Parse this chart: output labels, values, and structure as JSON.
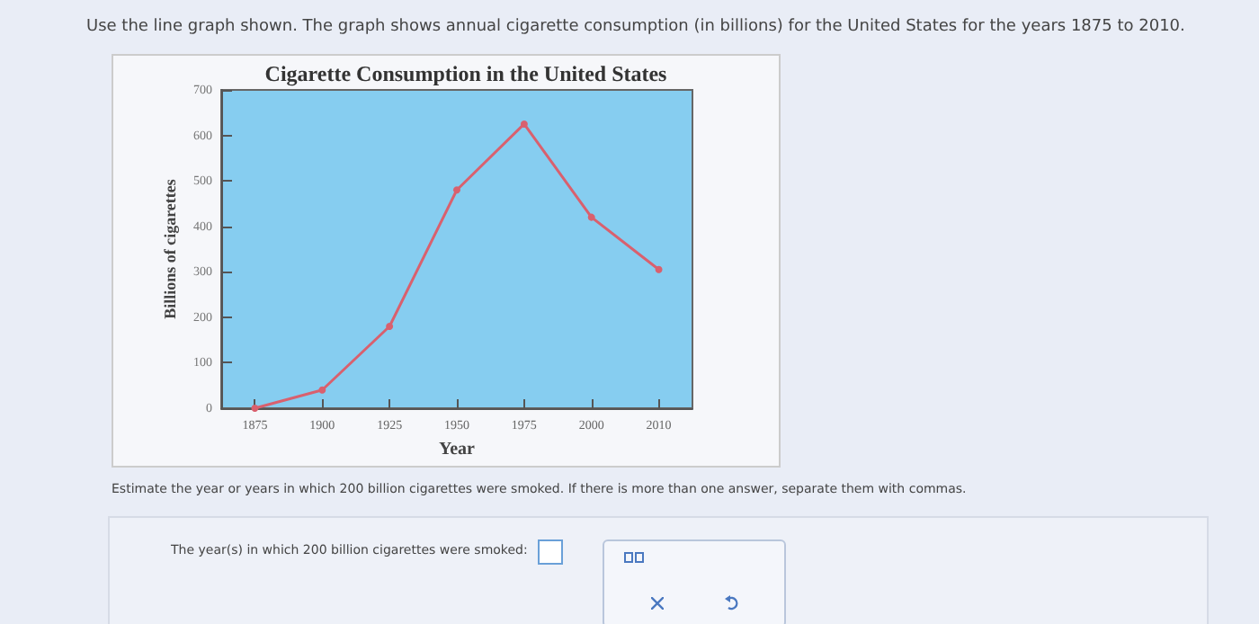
{
  "chart_data": {
    "type": "line",
    "title": "Cigarette Consumption in the United States",
    "xlabel": "Year",
    "ylabel": "Billions of cigarettes",
    "categories": [
      "1875",
      "1900",
      "1925",
      "1950",
      "1975",
      "2000",
      "2010"
    ],
    "series": [
      {
        "color": "#d9606e",
        "values": [
          0,
          40,
          180,
          480,
          625,
          420,
          305
        ]
      }
    ],
    "ylim": [
      0,
      700
    ],
    "yticks": [
      0,
      100,
      200,
      300,
      400,
      500,
      600,
      700
    ],
    "grid": false,
    "marker": "circle",
    "line_style": "solid",
    "annotations": [
      "Use the line graph shown. The graph shows annual cigarette consumption (in billions) for the United States for the years 1875 to 2010.",
      "Estimate the year or years in which 200 billion cigarettes were smoked. If there is more than one answer, separate them with commas.",
      "The year(s) in which 200 billion cigarettes were smoked:"
    ]
  }
}
